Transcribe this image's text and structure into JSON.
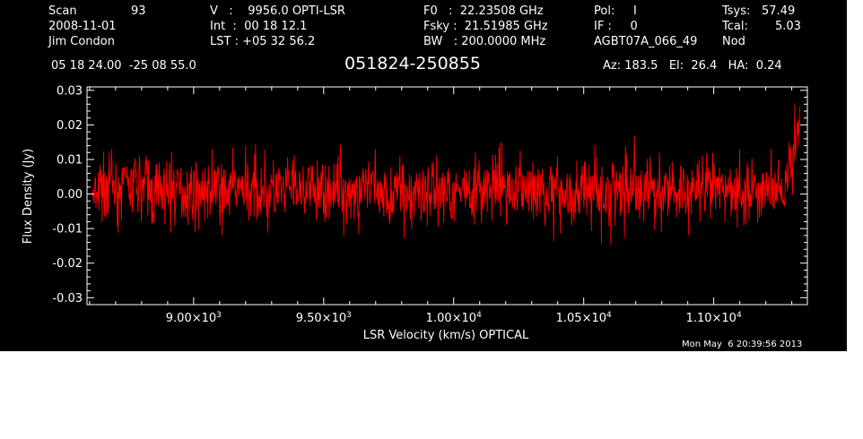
{
  "header": {
    "scan_label": "Scan",
    "scan_value": "93",
    "date": "2008-11-01",
    "observer": "Jim Condon",
    "v_line": "V   :    9956.0 OPTI-LSR",
    "int_line": "Int  :  00 18 12.1",
    "lst_line": "LST : +05 32 56.2",
    "f0_line": "F0   :  22.23508 GHz",
    "fsky_line": "Fsky :  21.51985 GHz",
    "bw_line": "BW   : 200.0000 MHz",
    "pol_line": "Pol:     I",
    "if_line": "IF :     0",
    "project": "AGBT07A_066_49",
    "tsys_label": "Tsys:",
    "tsys_value": "57.49",
    "tcal_label": "Tcal:",
    "tcal_value": "5.03",
    "nod": "Nod",
    "coords": "05 18 24.00  -25 08 55.0",
    "source": "051824-250855",
    "az_el_ha": "Az: 183.5   El:  26.4   HA:  0.24",
    "timestamp": "Mon May  6 20:39:56 2013"
  },
  "colors": {
    "background": "#000000",
    "axes": "#ffffff",
    "trace": "#ff0000"
  },
  "chart_data": {
    "type": "line",
    "xlabel": "LSR Velocity (km/s) OPTICAL",
    "ylabel": "Flux Density (Jy)",
    "xlim": [
      8590,
      11360
    ],
    "ylim": [
      -0.032,
      0.031
    ],
    "yticks": [
      -0.03,
      -0.02,
      -0.01,
      0.0,
      0.01,
      0.02,
      0.03
    ],
    "ytick_labels": [
      "-0.03",
      "-0.02",
      "-0.01",
      "0.00",
      "0.01",
      "0.02",
      "0.03"
    ],
    "xticks": [
      9000,
      9500,
      10000,
      10500,
      11000
    ],
    "xtick_mantissa": [
      "9.00×10",
      "9.50×10",
      "1.00×10",
      "1.05×10",
      "1.10×10"
    ],
    "xtick_exponent": [
      "3",
      "3",
      "4",
      "4",
      "4"
    ],
    "series": [
      {
        "x": [
          8610,
          8620,
          8640,
          8670,
          8700,
          8750,
          8800,
          8850,
          8900,
          9000,
          9100,
          9200,
          9300,
          9400,
          9500,
          9600,
          9700,
          9800,
          9900,
          10000,
          10100,
          10200,
          10300,
          10400,
          10500,
          10600,
          10700,
          10800,
          10900,
          11000,
          11100,
          11150,
          11200,
          11240,
          11270,
          11290,
          11310,
          11330
        ],
        "center": [
          0.0,
          -0.003,
          0.002,
          0.004,
          0.003,
          0.002,
          0.002,
          0.001,
          0.002,
          0.001,
          0.001,
          0.001,
          0.001,
          0.001,
          0.001,
          0.001,
          0.001,
          0.001,
          0.001,
          0.001,
          0.001,
          0.001,
          0.001,
          0.001,
          0.001,
          0.001,
          0.001,
          0.001,
          0.001,
          0.001,
          0.001,
          0.001,
          0.001,
          0.001,
          0.0,
          0.006,
          0.014,
          0.02
        ],
        "max": [
          0.004,
          0.012,
          0.016,
          0.014,
          0.012,
          0.013,
          0.019,
          0.013,
          0.012,
          0.013,
          0.013,
          0.014,
          0.015,
          0.014,
          0.013,
          0.015,
          0.013,
          0.016,
          0.013,
          0.013,
          0.014,
          0.015,
          0.014,
          0.013,
          0.015,
          0.013,
          0.017,
          0.016,
          0.014,
          0.015,
          0.013,
          0.016,
          0.012,
          0.014,
          0.012,
          0.02,
          0.026,
          0.029
        ],
        "min": [
          -0.005,
          -0.021,
          -0.017,
          -0.013,
          -0.011,
          -0.012,
          -0.013,
          -0.017,
          -0.011,
          -0.013,
          -0.012,
          -0.012,
          -0.011,
          -0.012,
          -0.013,
          -0.012,
          -0.011,
          -0.013,
          -0.011,
          -0.012,
          -0.012,
          -0.011,
          -0.012,
          -0.014,
          -0.013,
          -0.015,
          -0.011,
          -0.013,
          -0.012,
          -0.012,
          -0.013,
          -0.016,
          -0.01,
          -0.008,
          -0.008,
          -0.004,
          0.002,
          0.008
        ]
      }
    ]
  }
}
